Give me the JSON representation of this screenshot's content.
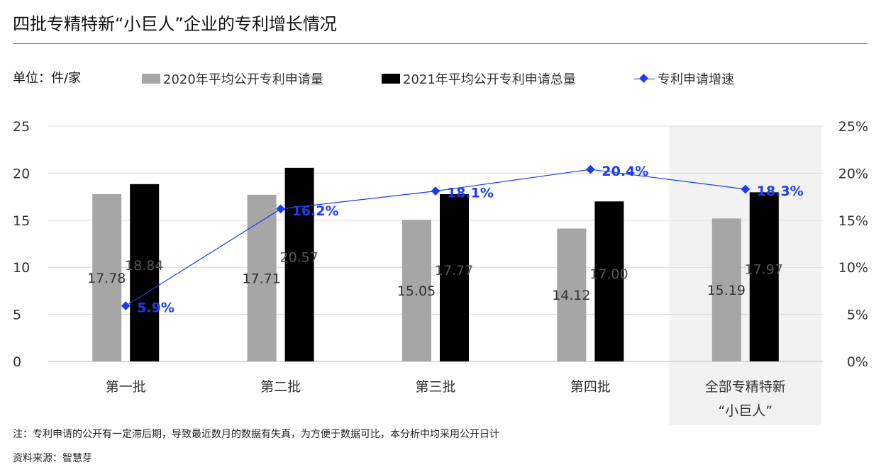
{
  "title": "四批专精特新“小巨人”企业的专利增长情况",
  "unit_label": "单位：件/家",
  "note": "注：专利申请的公开有一定滞后期，导致最近数月的数据有失真，为方便于数据可比，本分析中均采用公开日计",
  "source": "资料来源：智慧芽",
  "chart_data": {
    "type": "bar",
    "categories": [
      "第一批",
      "第二批",
      "第三批",
      "第四批",
      "全部专精特新\n“小巨人”"
    ],
    "series": [
      {
        "name": "2020年平均公开专利申请量",
        "kind": "bar",
        "axis": "left",
        "color": "#a6a6a6",
        "values": [
          17.78,
          17.71,
          15.05,
          14.12,
          15.19
        ],
        "labels": [
          "17.78",
          "17.71",
          "15.05",
          "14.12",
          "15.19"
        ]
      },
      {
        "name": "2021年平均公开专利申请总量",
        "kind": "bar",
        "axis": "left",
        "color": "#000000",
        "values": [
          18.84,
          20.57,
          17.77,
          17.0,
          17.97
        ],
        "labels": [
          "18.84",
          "20.57",
          "17.77",
          "17.00",
          "17.97"
        ]
      },
      {
        "name": "专利申请增速",
        "kind": "line",
        "axis": "right",
        "color": "#1a3df0",
        "values": [
          5.9,
          16.2,
          18.1,
          20.4,
          18.3
        ],
        "labels": [
          "5.9%",
          "16.2%",
          "18.1%",
          "20.4%",
          "18.3%"
        ]
      }
    ],
    "y_left": {
      "min": 0,
      "max": 25,
      "ticks": [
        "0",
        "5",
        "10",
        "15",
        "20",
        "25"
      ]
    },
    "y_right": {
      "min": 0,
      "max": 25,
      "ticks": [
        "0%",
        "5%",
        "10%",
        "15%",
        "20%",
        "25%"
      ]
    },
    "grid": true,
    "highlight_category_index": 4,
    "highlight_color": "#f2f2f2",
    "legend_position": "top"
  }
}
